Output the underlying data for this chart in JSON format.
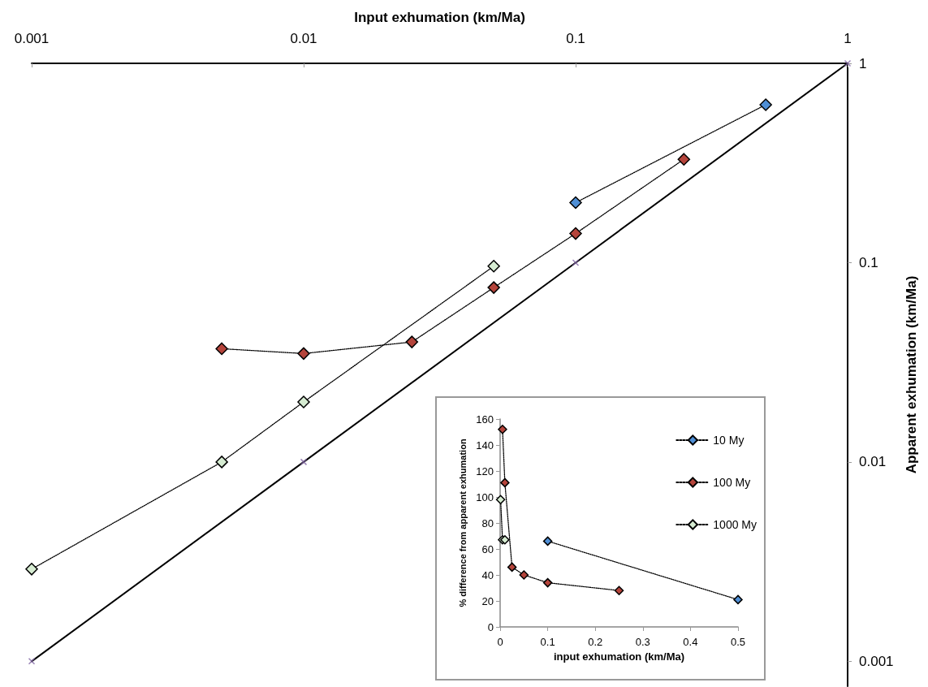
{
  "chart_data": [
    {
      "type": "line",
      "xlabel": "Input exhumation (km/Ma)",
      "ylabel": "Apparent exhumation (km/Ma)",
      "log": "xy",
      "xlim": [
        0.001,
        1
      ],
      "xticks": [
        0.001,
        0.01,
        0.1,
        1
      ],
      "ylim": [
        0.00075,
        1
      ],
      "yticks": [
        0.001,
        0.01,
        0.1,
        1
      ],
      "grid": false,
      "legend": false,
      "marker": "diamond",
      "line_style": "dotted",
      "series": [
        {
          "color": "#4f8fd6",
          "x": [
            0.1,
            0.5
          ],
          "values": [
            0.2,
            0.62
          ]
        },
        {
          "color": "#b5443b",
          "x": [
            0.005,
            0.01,
            0.025,
            0.05,
            0.1,
            0.25
          ],
          "values": [
            0.037,
            0.035,
            0.04,
            0.075,
            0.14,
            0.33
          ]
        },
        {
          "color": "#d6ecd2",
          "x": [
            0.001,
            0.005,
            0.01,
            0.05
          ],
          "values": [
            0.0029,
            0.01,
            0.02,
            0.096
          ]
        },
        {
          "color": "#000000",
          "line_style": "solid",
          "marker": "none",
          "x": [
            0.001,
            0.01,
            0.1,
            1
          ],
          "values": [
            0.001,
            0.01,
            0.1,
            1
          ]
        },
        {
          "type": "scatter",
          "color": "#8064a2",
          "marker": "cross",
          "x": [
            0.001,
            0.01,
            0.1,
            1
          ],
          "values": [
            0.001,
            0.01,
            0.1,
            1
          ]
        }
      ]
    },
    {
      "type": "line",
      "xlabel": "input exhumation (km/Ma)",
      "ylabel": "% difference from apparent exhumation",
      "xlim": [
        0,
        0.5
      ],
      "xticks": [
        0,
        0.1,
        0.2,
        0.3,
        0.4,
        0.5
      ],
      "ylim": [
        0,
        160
      ],
      "yticks": [
        0,
        20,
        40,
        60,
        80,
        100,
        120,
        140,
        160
      ],
      "grid": false,
      "legend": "right",
      "marker": "diamond",
      "line_style": "dotted",
      "series": [
        {
          "name": "10 My",
          "color": "#4f8fd6",
          "x": [
            0.1,
            0.5
          ],
          "values": [
            66,
            21
          ]
        },
        {
          "name": "100 My",
          "color": "#b5443b",
          "x": [
            0.005,
            0.01,
            0.025,
            0.05,
            0.1,
            0.25
          ],
          "values": [
            152,
            111,
            46,
            40,
            34,
            28
          ]
        },
        {
          "name": "1000 My",
          "color": "#d6ecd2",
          "x": [
            0.001,
            0.005,
            0.01
          ],
          "values": [
            98,
            67,
            67
          ]
        }
      ]
    }
  ]
}
